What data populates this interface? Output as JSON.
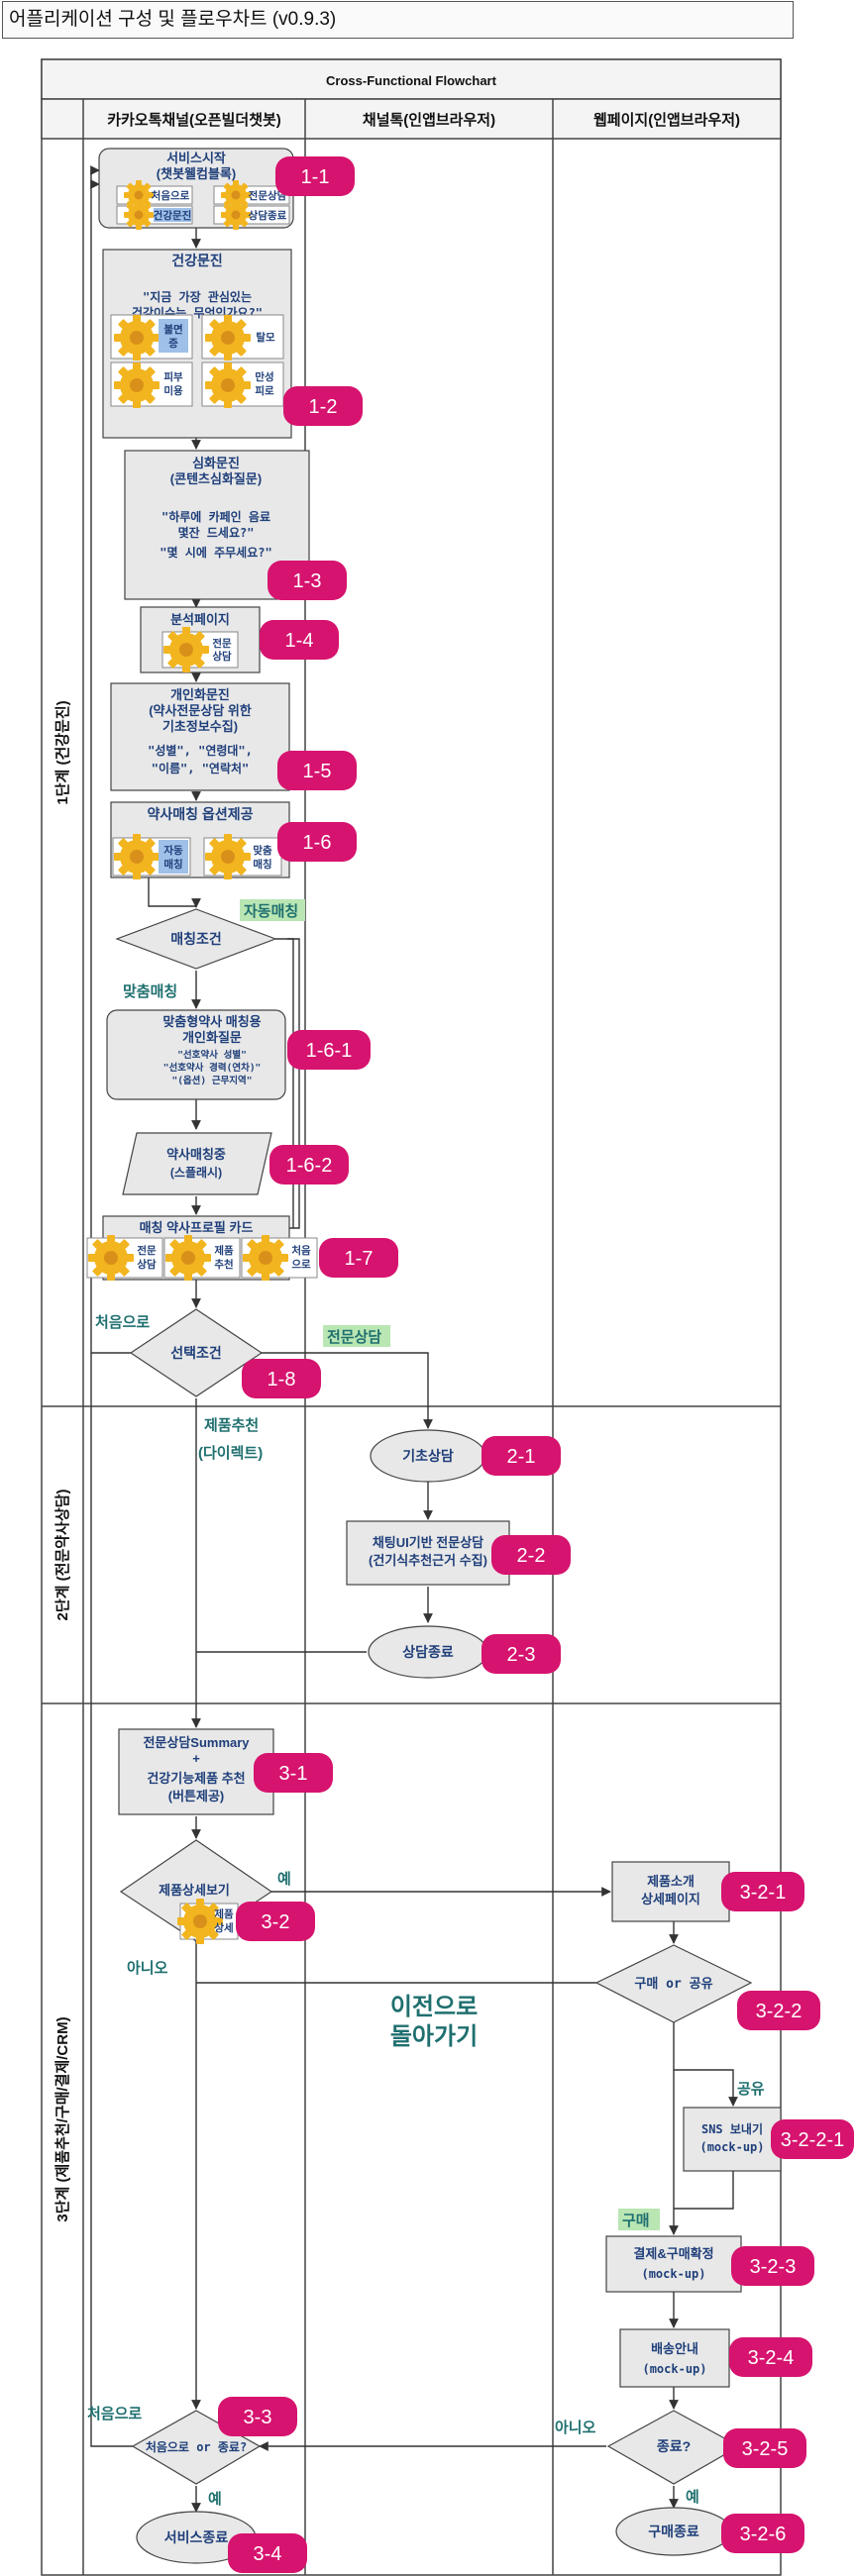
{
  "title": "어플리케이션 구성 및 플로우차트 (v0.9.3)",
  "flowchart_title": "Cross-Functional Flowchart",
  "lanes": [
    "카카오톡채널(오픈빌더챗봇)",
    "채널톡(인앱브라우저)",
    "웹페이지(인앱브라우저)"
  ],
  "phases": [
    "1단계 (건강문진)",
    "2단계 (전문약사상담)",
    "3단계 (제품추천/구매/결제/CRM)"
  ],
  "colors": {
    "badge": "#d6136e",
    "gear": "#f2b51f",
    "node": "#e8e8e8",
    "highlight": "#b9e6b3",
    "text": "#1f3f7a"
  },
  "nodes": {
    "n1_1": {
      "title1": "서비스시작",
      "title2": "(챗봇웰컴블록)",
      "btn1": "처음으로",
      "btn2": "전문상담",
      "btn3": "건강문진",
      "btn4": "상담종료",
      "badge": "1-1"
    },
    "n1_2": {
      "title": "건강문진",
      "q1": "\"지금 가장 관심있는",
      "q2": "건강이슈는 무엇인가요?\"",
      "g1a": "불면",
      "g1b": "증",
      "g2": "탈모",
      "g3a": "피부",
      "g3b": "미용",
      "g4a": "만성",
      "g4b": "피로",
      "badge": "1-2"
    },
    "n1_3": {
      "title1": "심화문진",
      "title2": "(콘텐츠심화질문)",
      "q1": "\"하루에 카페인 음료",
      "q2": "몇잔 드세요?\"",
      "q3": "\"몇 시에 주무세요?\"",
      "badge": "1-3"
    },
    "n1_4": {
      "title": "분석페이지",
      "g1a": "전문",
      "g1b": "상담",
      "badge": "1-4"
    },
    "n1_5": {
      "title1": "개인화문진",
      "title2": "(약사전문상담 위한",
      "title3": "기초정보수집)",
      "q1": "\"성별\", \"연령대\",",
      "q2": "\"이름\", \"연락처\"",
      "badge": "1-5"
    },
    "n1_6": {
      "title": "약사매칭 옵션제공",
      "g1a": "자동",
      "g1b": "매칭",
      "g2a": "맞춤",
      "g2b": "매칭",
      "badge": "1-6"
    },
    "d_match": {
      "label": "매칭조건",
      "yes_label": "자동매칭",
      "no_label": "맞춤매칭"
    },
    "n1_6_1": {
      "title1": "맞춤형약사 매칭용",
      "title2": "개인화질문",
      "q1": "\"선호약사 성별\"",
      "q2": "\"선호약사 경력(연차)\"",
      "q3": "\"(옵션) 근무지역\"",
      "badge": "1-6-1"
    },
    "n1_6_2": {
      "title1": "약사매칭중",
      "title2": "(스플래시)",
      "badge": "1-6-2"
    },
    "n1_7": {
      "title": "매칭 약사프로필 카드",
      "g1a": "전문",
      "g1b": "상담",
      "g2a": "제품",
      "g2b": "추천",
      "g3a": "처음",
      "g3b": "으로",
      "badge": "1-7"
    },
    "n1_8": {
      "label": "선택조건",
      "left_label": "처음으로",
      "right_label": "전문상담",
      "down_label1": "제품추천",
      "down_label2": "(다이렉트)",
      "badge": "1-8"
    },
    "n2_1": {
      "label": "기초상담",
      "badge": "2-1"
    },
    "n2_2": {
      "title1": "채팅UI기반 전문상담",
      "title2": "(건기식추천근거 수집)",
      "badge": "2-2"
    },
    "n2_3": {
      "label": "상담종료",
      "badge": "2-3"
    },
    "n3_1": {
      "title1": "전문상담Summary",
      "title2": "+",
      "title3": "건강기능제품 추천",
      "title4": "(버튼제공)",
      "badge": "3-1"
    },
    "n3_2": {
      "label": "제품상세보기",
      "g1a": "제품",
      "g1b": "상세",
      "yes_label": "예",
      "no_label": "아니오",
      "badge": "3-2"
    },
    "n3_2_1": {
      "title1": "제품소개",
      "title2": "상세페이지",
      "badge": "3-2-1"
    },
    "n3_2_2": {
      "label": "구매 or 공유",
      "share_label": "공유",
      "buy_label": "구매",
      "badge": "3-2-2"
    },
    "n3_2_2_1": {
      "title1": "SNS 보내기",
      "title2": "(mock-up)",
      "badge": "3-2-2-1"
    },
    "n3_2_3": {
      "title1": "결제&구매확정",
      "title2": "(mock-up)",
      "badge": "3-2-3"
    },
    "n3_2_4": {
      "title1": "배송안내",
      "title2": "(mock-up)",
      "badge": "3-2-4"
    },
    "n3_2_5": {
      "label": "종료?",
      "no_label": "아니오",
      "yes_label": "예",
      "badge": "3-2-5"
    },
    "n3_2_6": {
      "label": "구매종료",
      "badge": "3-2-6"
    },
    "n3_3": {
      "label": "처음으로 or 종료?",
      "left_label": "처음으로",
      "yes_label": "예",
      "badge": "3-3"
    },
    "n3_4": {
      "label": "서비스종료",
      "badge": "3-4"
    },
    "back_note1": "이전으로",
    "back_note2": "돌아가기"
  }
}
